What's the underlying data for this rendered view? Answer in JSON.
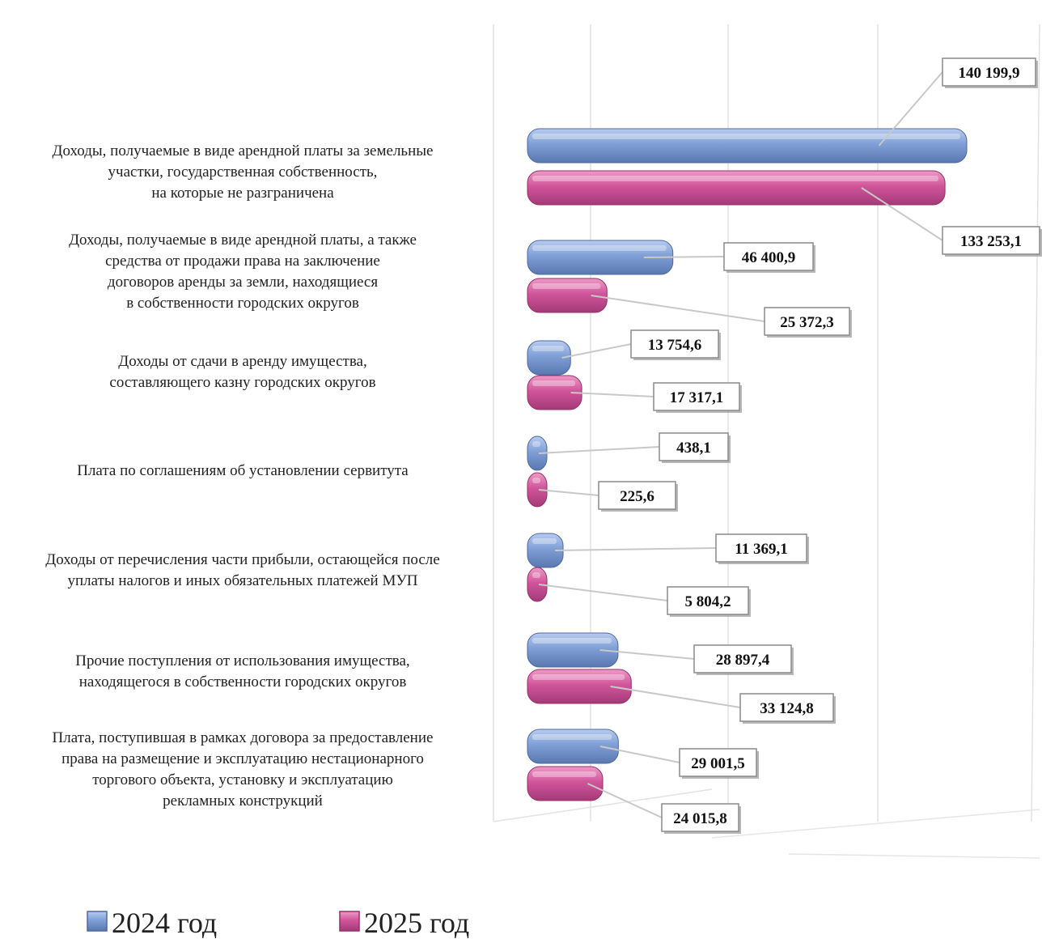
{
  "chart_data": {
    "type": "bar",
    "orientation": "horizontal",
    "categories": [
      [
        "Доходы, получаемые в виде арендной платы  за земельные",
        "участки, государственная собственность,",
        "на которые не разграничена"
      ],
      [
        "Доходы, получаемые в виде арендной платы,  а также",
        "средства от продажи  права  на заключение",
        "договоров аренды за земли, находящиеся",
        "в собственности городских округов"
      ],
      [
        "Доходы от сдачи в аренду имущества,",
        "составляющего казну городских округов"
      ],
      [
        "Плата  по соглашениям об установлении  сервитута"
      ],
      [
        "Доходы от перечисления части прибыли,  остающейся после",
        "уплаты  налогов и иных  обязательных платежей МУП"
      ],
      [
        "Прочие поступления  от использования имущества,",
        "находящегося в собственности городских округов"
      ],
      [
        "Плата,  поступившая  в рамках договора за предоставление",
        "права  на размещение и эксплуатацию  нестационарного",
        "торгового объекта, установку и эксплуатацию",
        "рекламных  конструкций"
      ]
    ],
    "series": [
      {
        "name": "2024 год",
        "color": "#7f9fd6",
        "values": [
          140199.9,
          46400.9,
          13754.6,
          438.1,
          11369.1,
          28897.4,
          29001.5
        ],
        "value_labels": [
          "140 199,9",
          "46 400,9",
          "13 754,6",
          "438,1",
          "11 369,1",
          "28 897,4",
          "29 001,5"
        ]
      },
      {
        "name": "2025 год",
        "color": "#d0559a",
        "values": [
          133253.1,
          25372.3,
          17317.1,
          225.6,
          5804.2,
          33124.8,
          24015.8
        ],
        "value_labels": [
          "133 253,1",
          "25 372,3",
          "17 317,1",
          "225,6",
          "5 804,2",
          "33 124,8",
          "24 015,8"
        ]
      }
    ],
    "xlim": [
      0,
      150000
    ],
    "grid": true,
    "legend_position": "bottom-left"
  }
}
